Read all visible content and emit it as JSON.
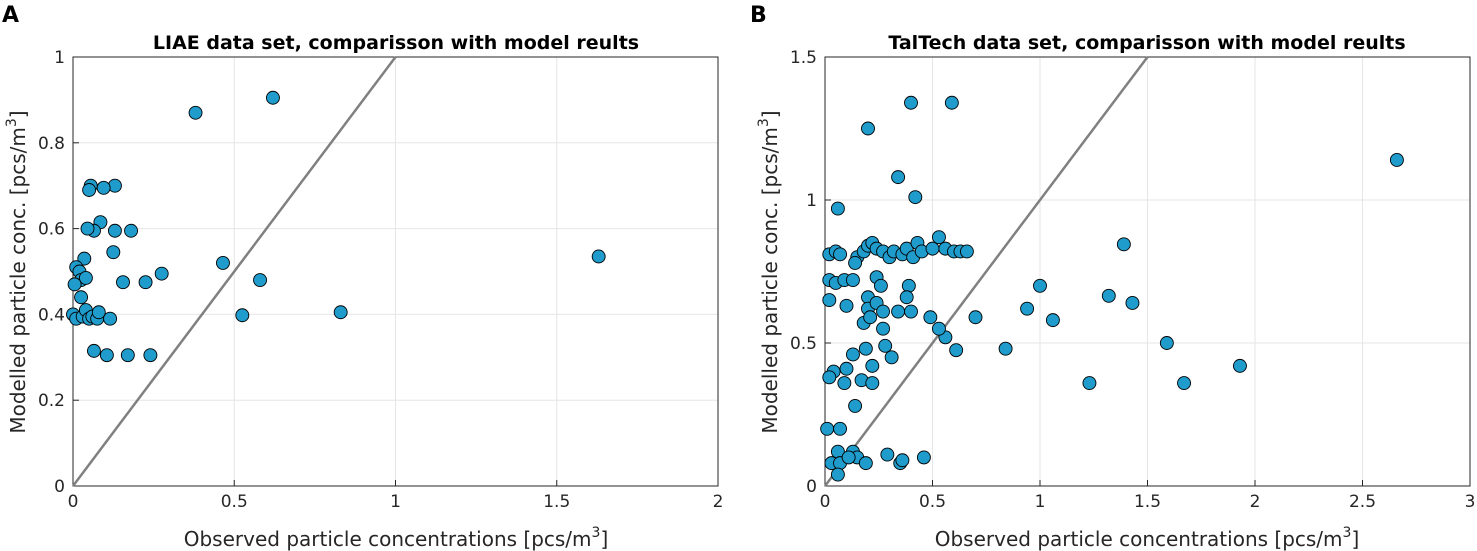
{
  "figure": {
    "panels": [
      {
        "letter": "A"
      },
      {
        "letter": "B"
      }
    ]
  },
  "colors": {
    "marker_fill": "#1f9ccc",
    "marker_edge": "#000000",
    "identity_line": "#808080",
    "grid": "#e6e6e6"
  },
  "chart_data": [
    {
      "type": "scatter",
      "title": "LIAE data set, comparisson with model reults",
      "xlabel": "Observed particle concentrations [pcs/m",
      "xlabel_sup": "3",
      "xlabel_end": "]",
      "ylabel": "Modelled particle conc. [pcs/m",
      "ylabel_sup": "3",
      "ylabel_end": "]",
      "xlim": [
        0,
        2
      ],
      "ylim": [
        0,
        1
      ],
      "xticks": [
        0,
        0.5,
        1,
        1.5,
        2
      ],
      "xtick_labels": [
        "0",
        "0.5",
        "1",
        "1.5",
        "2"
      ],
      "yticks": [
        0,
        0.2,
        0.4,
        0.6,
        0.8,
        1
      ],
      "ytick_labels": [
        "0",
        "0.2",
        "0.4",
        "0.6",
        "0.8",
        "1"
      ],
      "grid": true,
      "identity_line": [
        [
          0,
          0
        ],
        [
          1,
          1
        ]
      ],
      "points": [
        [
          0.38,
          0.87
        ],
        [
          0.62,
          0.905
        ],
        [
          1.63,
          0.535
        ],
        [
          0.83,
          0.405
        ],
        [
          0.525,
          0.398
        ],
        [
          0.58,
          0.48
        ],
        [
          0.465,
          0.52
        ],
        [
          0.275,
          0.495
        ],
        [
          0.225,
          0.475
        ],
        [
          0.24,
          0.305
        ],
        [
          0.17,
          0.305
        ],
        [
          0.155,
          0.475
        ],
        [
          0.18,
          0.595
        ],
        [
          0.13,
          0.595
        ],
        [
          0.125,
          0.545
        ],
        [
          0.13,
          0.7
        ],
        [
          0.095,
          0.695
        ],
        [
          0.055,
          0.7
        ],
        [
          0.05,
          0.69
        ],
        [
          0.085,
          0.615
        ],
        [
          0.065,
          0.595
        ],
        [
          0.045,
          0.6
        ],
        [
          0.035,
          0.53
        ],
        [
          0.01,
          0.51
        ],
        [
          0.02,
          0.5
        ],
        [
          0.025,
          0.48
        ],
        [
          0.04,
          0.485
        ],
        [
          0.005,
          0.47
        ],
        [
          0.025,
          0.44
        ],
        [
          0.0,
          0.4
        ],
        [
          0.01,
          0.39
        ],
        [
          0.03,
          0.395
        ],
        [
          0.04,
          0.41
        ],
        [
          0.05,
          0.39
        ],
        [
          0.06,
          0.395
        ],
        [
          0.075,
          0.39
        ],
        [
          0.08,
          0.405
        ],
        [
          0.115,
          0.39
        ],
        [
          0.065,
          0.315
        ],
        [
          0.105,
          0.305
        ]
      ]
    },
    {
      "type": "scatter",
      "title": "TalTech data set, comparisson with model reults",
      "xlabel": "Observed particle concentrations [pcs/m",
      "xlabel_sup": "3",
      "xlabel_end": "]",
      "ylabel": "Modelled particle conc. [pcs/m",
      "ylabel_sup": "3",
      "ylabel_end": "]",
      "xlim": [
        0,
        3
      ],
      "ylim": [
        0,
        1.5
      ],
      "xticks": [
        0,
        0.5,
        1,
        1.5,
        2,
        2.5,
        3
      ],
      "xtick_labels": [
        "0",
        "0.5",
        "1",
        "1.5",
        "2",
        "2.5",
        "3"
      ],
      "yticks": [
        0,
        0.5,
        1,
        1.5
      ],
      "ytick_labels": [
        "0",
        "0.5",
        "1",
        "1.5"
      ],
      "grid": true,
      "identity_line": [
        [
          0,
          0
        ],
        [
          1.5,
          1.5
        ]
      ],
      "points": [
        [
          0.4,
          1.34
        ],
        [
          0.59,
          1.34
        ],
        [
          0.2,
          1.25
        ],
        [
          0.34,
          1.08
        ],
        [
          0.42,
          1.01
        ],
        [
          0.06,
          0.97
        ],
        [
          2.66,
          1.14
        ],
        [
          1.39,
          0.845
        ],
        [
          1.0,
          0.7
        ],
        [
          1.32,
          0.665
        ],
        [
          1.43,
          0.64
        ],
        [
          0.94,
          0.62
        ],
        [
          1.06,
          0.58
        ],
        [
          0.7,
          0.59
        ],
        [
          0.84,
          0.48
        ],
        [
          1.59,
          0.5
        ],
        [
          1.93,
          0.42
        ],
        [
          1.67,
          0.36
        ],
        [
          1.23,
          0.36
        ],
        [
          0.61,
          0.475
        ],
        [
          0.56,
          0.52
        ],
        [
          0.53,
          0.55
        ],
        [
          0.49,
          0.59
        ],
        [
          0.02,
          0.81
        ],
        [
          0.05,
          0.82
        ],
        [
          0.07,
          0.81
        ],
        [
          0.15,
          0.8
        ],
        [
          0.18,
          0.82
        ],
        [
          0.2,
          0.84
        ],
        [
          0.22,
          0.85
        ],
        [
          0.24,
          0.83
        ],
        [
          0.27,
          0.82
        ],
        [
          0.3,
          0.8
        ],
        [
          0.32,
          0.82
        ],
        [
          0.36,
          0.81
        ],
        [
          0.38,
          0.83
        ],
        [
          0.41,
          0.8
        ],
        [
          0.43,
          0.85
        ],
        [
          0.45,
          0.82
        ],
        [
          0.5,
          0.83
        ],
        [
          0.53,
          0.87
        ],
        [
          0.56,
          0.83
        ],
        [
          0.6,
          0.82
        ],
        [
          0.63,
          0.82
        ],
        [
          0.66,
          0.82
        ],
        [
          0.02,
          0.72
        ],
        [
          0.05,
          0.71
        ],
        [
          0.09,
          0.72
        ],
        [
          0.14,
          0.78
        ],
        [
          0.13,
          0.72
        ],
        [
          0.2,
          0.66
        ],
        [
          0.24,
          0.73
        ],
        [
          0.26,
          0.7
        ],
        [
          0.39,
          0.7
        ],
        [
          0.38,
          0.66
        ],
        [
          0.1,
          0.63
        ],
        [
          0.2,
          0.62
        ],
        [
          0.24,
          0.64
        ],
        [
          0.27,
          0.61
        ],
        [
          0.34,
          0.61
        ],
        [
          0.4,
          0.61
        ],
        [
          0.02,
          0.65
        ],
        [
          0.18,
          0.57
        ],
        [
          0.21,
          0.59
        ],
        [
          0.27,
          0.55
        ],
        [
          0.28,
          0.49
        ],
        [
          0.31,
          0.45
        ],
        [
          0.19,
          0.48
        ],
        [
          0.13,
          0.46
        ],
        [
          0.22,
          0.42
        ],
        [
          0.04,
          0.4
        ],
        [
          0.1,
          0.41
        ],
        [
          0.02,
          0.38
        ],
        [
          0.17,
          0.37
        ],
        [
          0.22,
          0.36
        ],
        [
          0.09,
          0.36
        ],
        [
          0.14,
          0.28
        ],
        [
          0.01,
          0.2
        ],
        [
          0.07,
          0.2
        ],
        [
          0.06,
          0.12
        ],
        [
          0.13,
          0.12
        ],
        [
          0.15,
          0.1
        ],
        [
          0.03,
          0.08
        ],
        [
          0.07,
          0.08
        ],
        [
          0.11,
          0.1
        ],
        [
          0.19,
          0.08
        ],
        [
          0.06,
          0.04
        ],
        [
          0.29,
          0.11
        ],
        [
          0.35,
          0.08
        ],
        [
          0.36,
          0.09
        ],
        [
          0.46,
          0.1
        ]
      ]
    }
  ]
}
